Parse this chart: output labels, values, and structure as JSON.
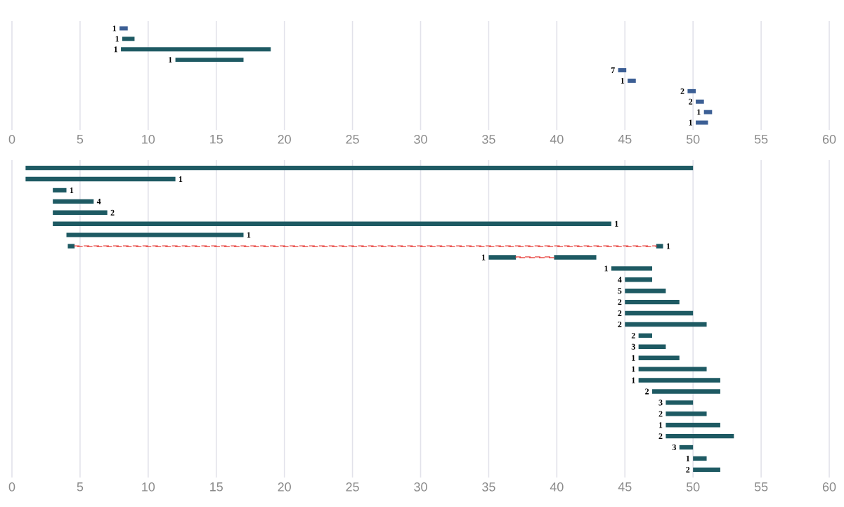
{
  "chart_data": [
    {
      "type": "bar",
      "orientation": "horizontal",
      "categories": [
        null,
        null,
        null,
        null,
        null,
        null,
        null,
        null,
        null,
        null
      ],
      "series": [
        {
          "color": "#3c5f95",
          "base": [
            7.9,
            null,
            null,
            null,
            44.5,
            45.2,
            49.6,
            50.2,
            50.8,
            50.2
          ],
          "values": [
            0.6,
            null,
            null,
            null,
            0.6,
            0.6,
            0.6,
            0.6,
            0.6,
            0.9
          ]
        },
        {
          "color": "#1e5a63",
          "base": [
            null,
            8.1,
            8,
            12,
            null,
            null,
            null,
            null,
            null,
            null
          ],
          "values": [
            null,
            0.9,
            11,
            5,
            null,
            null,
            null,
            null,
            null,
            null
          ]
        }
      ],
      "annotations": [
        "1",
        "1",
        "1",
        "1",
        "7",
        "1",
        "2",
        "2",
        "1",
        "1"
      ],
      "xlim": [
        0,
        60
      ],
      "xticks": [
        0,
        5,
        10,
        15,
        20,
        25,
        30,
        35,
        40,
        45,
        50,
        55,
        60
      ],
      "grid": "x",
      "tick_labels": "x"
    },
    {
      "type": "bar",
      "orientation": "horizontal",
      "categories": [
        null,
        null,
        null,
        null,
        null,
        null,
        null,
        null,
        null,
        null,
        null,
        null,
        null,
        null,
        null,
        null,
        null,
        null,
        null,
        null,
        null,
        null,
        null,
        null,
        null,
        null,
        null,
        null
      ],
      "series": [
        {
          "color": "#1e5a63",
          "base": [
            1,
            1,
            3,
            3,
            3,
            3,
            4,
            4.1,
            35,
            44,
            45,
            45,
            45,
            45,
            45,
            46,
            46,
            46,
            46,
            46,
            47,
            48,
            48,
            48,
            48,
            49,
            50,
            50
          ],
          "values": [
            49,
            11,
            1,
            3,
            4,
            41,
            13,
            0.5,
            2,
            3,
            2,
            3,
            4,
            5,
            6,
            1,
            2,
            3,
            5,
            6,
            5,
            2,
            3,
            4,
            5,
            1,
            1,
            2
          ]
        },
        {
          "color": "#1e5a63",
          "base": [
            null,
            null,
            null,
            null,
            null,
            null,
            null,
            47.3,
            39.8,
            null,
            null,
            null,
            null,
            null,
            null,
            null,
            null,
            null,
            null,
            null,
            null,
            null,
            null,
            null,
            null,
            null,
            null,
            null
          ],
          "values": [
            null,
            null,
            null,
            null,
            null,
            null,
            null,
            0.5,
            3.1,
            null,
            null,
            null,
            null,
            null,
            null,
            null,
            null,
            null,
            null,
            null,
            null,
            null,
            null,
            null,
            null,
            null,
            null,
            null
          ]
        },
        {
          "line_style": "dashed",
          "color": "#e8413c",
          "base": [
            null,
            null,
            null,
            null,
            null,
            null,
            null,
            4.6,
            37,
            null,
            null,
            null,
            null,
            null,
            null,
            null,
            null,
            null,
            null,
            null,
            null,
            null,
            null,
            null,
            null,
            null,
            null,
            null
          ],
          "values": [
            null,
            null,
            null,
            null,
            null,
            null,
            null,
            42.7,
            2.8,
            null,
            null,
            null,
            null,
            null,
            null,
            null,
            null,
            null,
            null,
            null,
            null,
            null,
            null,
            null,
            null,
            null,
            null,
            null
          ]
        }
      ],
      "annotations": [
        "1",
        "1",
        "4",
        "2",
        "1",
        "1",
        "1",
        "1",
        "1",
        "4",
        "5",
        "2",
        "2",
        "2",
        "2",
        "3",
        "1",
        "1",
        "1",
        "2",
        "3",
        "2",
        "1",
        "2",
        "3",
        "1",
        "2"
      ],
      "xlim": [
        0,
        60
      ],
      "xticks": [
        0,
        5,
        10,
        15,
        20,
        25,
        30,
        35,
        40,
        45,
        50,
        55,
        60
      ],
      "grid": "x",
      "tick_labels": "x"
    }
  ]
}
